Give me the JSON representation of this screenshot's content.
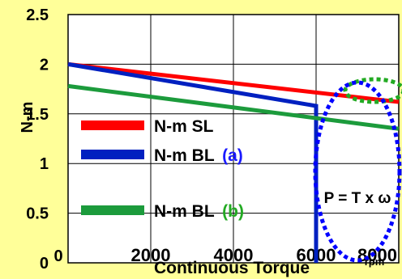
{
  "chart_data": {
    "type": "line",
    "title": "",
    "xlabel": "Continuous Torque",
    "x_unit": "rpm",
    "ylabel": "N-m",
    "xlim": [
      0,
      8000
    ],
    "ylim": [
      0,
      2.5
    ],
    "x_ticks": [
      "2000",
      "4000",
      "6000",
      "8000"
    ],
    "y_ticks": [
      "2.5",
      "2",
      "1.5",
      "1",
      "0.5",
      "0"
    ],
    "grid": true,
    "legend_position": "lower-left",
    "series": [
      {
        "name": "N-m SL",
        "color": "#ff0000",
        "points": [
          [
            0,
            2.0
          ],
          [
            8000,
            1.62
          ]
        ]
      },
      {
        "name": "N-m BL",
        "tag": "(a)",
        "tag_color": "#1a1aff",
        "color": "#0020c0",
        "points": [
          [
            0,
            2.0
          ],
          [
            6000,
            1.58
          ],
          [
            6000,
            0
          ]
        ]
      },
      {
        "name": "N-m BL",
        "tag": "(b)",
        "tag_color": "#22aa22",
        "color": "#1c9b3c",
        "points": [
          [
            0,
            1.78
          ],
          [
            8000,
            1.35
          ]
        ]
      }
    ],
    "annotation": {
      "text": "P = T x ω",
      "ellipse_color": "#0000ff",
      "small_ellipse_color": "#22aa22"
    }
  }
}
